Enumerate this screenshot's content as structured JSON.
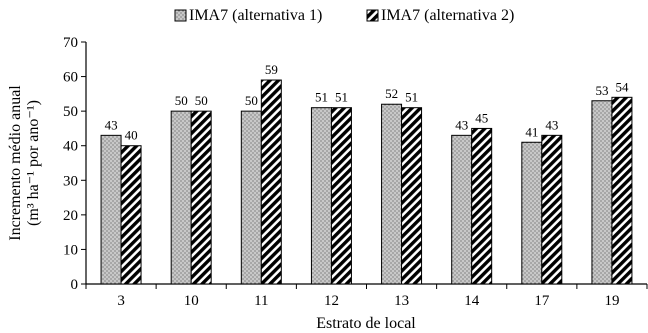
{
  "chart_data": {
    "type": "bar",
    "title": "",
    "xlabel": "Estrato de local",
    "ylabel_lines": [
      "Incremento médio anual",
      "(m³ ha⁻¹ por ano⁻¹)"
    ],
    "categories": [
      "3",
      "10",
      "11",
      "12",
      "13",
      "14",
      "17",
      "19"
    ],
    "series": [
      {
        "name": "IMA7 (alternativa 1)",
        "values": [
          43,
          50,
          50,
          51,
          52,
          43,
          41,
          53
        ],
        "pattern": "dots",
        "color": "#c8c8c8"
      },
      {
        "name": "IMA7 (alternativa 2)",
        "values": [
          40,
          50,
          59,
          51,
          51,
          45,
          43,
          54
        ],
        "pattern": "stripes",
        "color": "#000000"
      }
    ],
    "ylim": [
      0,
      70
    ],
    "yticks": [
      0,
      10,
      20,
      30,
      40,
      50,
      60,
      70
    ],
    "grid": false,
    "legend_position": "top-center"
  }
}
